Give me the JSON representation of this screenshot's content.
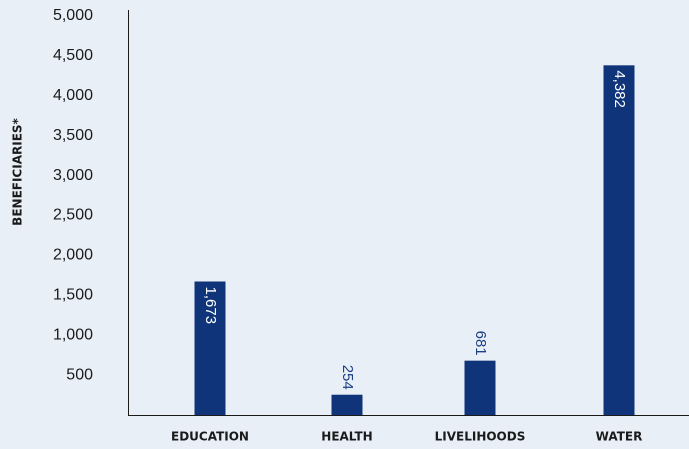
{
  "colors": {
    "background": "#e8eff6",
    "bar": "#10347a",
    "axis": "#1a1a1a",
    "label_on_bar": "#ffffff",
    "label_above_bar": "#1c3f86"
  },
  "chart_data": {
    "type": "bar",
    "title": "",
    "xlabel": "",
    "ylabel": "BENEFICIARIES*",
    "categories": [
      "EDUCATION",
      "HEALTH",
      "LIVELIHOODS",
      "WATER"
    ],
    "values": [
      1673,
      254,
      681,
      4382
    ],
    "value_labels": [
      "1,673",
      "254",
      "681",
      "4,382"
    ],
    "y_ticks": [
      500,
      1000,
      1500,
      2000,
      2500,
      3000,
      3500,
      4000,
      4500,
      5000
    ],
    "y_tick_labels": [
      "500",
      "1,000",
      "1,500",
      "2,000",
      "2,500",
      "3,000",
      "3,500",
      "4,000",
      "4,500",
      "5,000"
    ],
    "ylim": [
      0,
      5000
    ],
    "grid": false,
    "legend": "none"
  }
}
